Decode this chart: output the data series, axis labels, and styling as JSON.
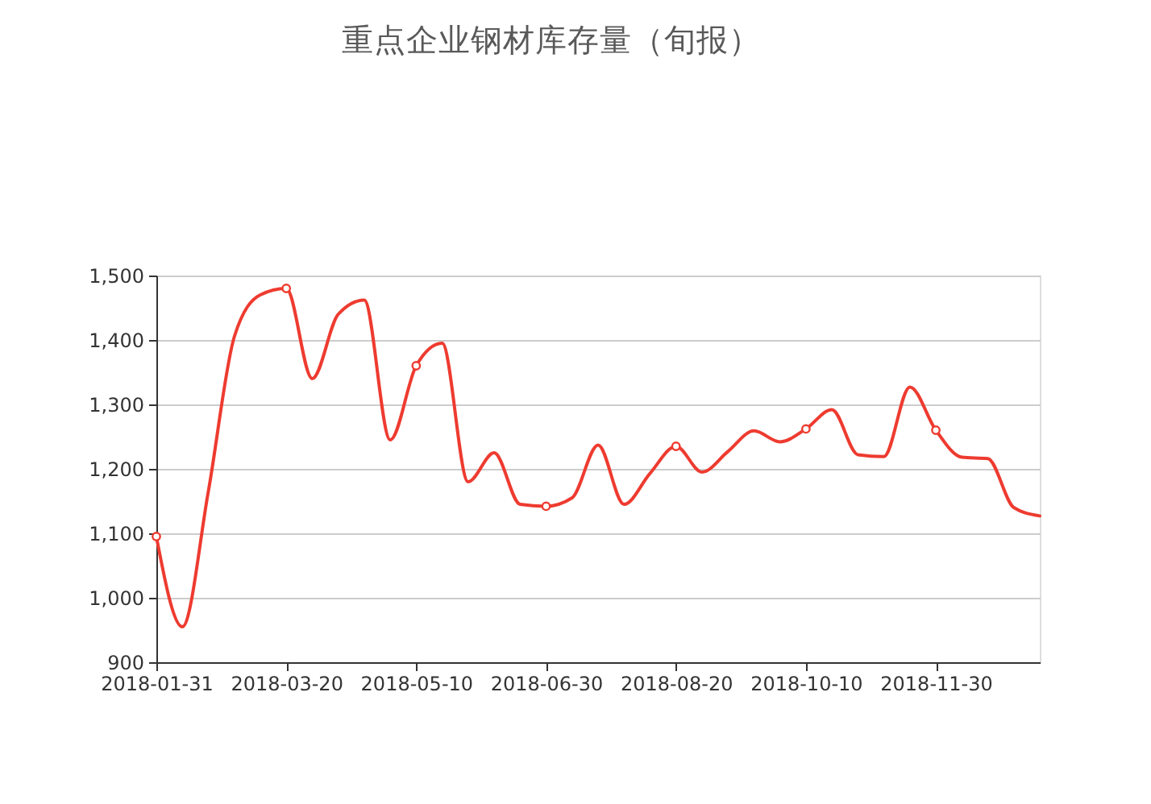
{
  "chart_data": {
    "type": "line",
    "title": "重点企业钢材库存量（旬报）",
    "categories": [
      "2018-01-31",
      null,
      null,
      null,
      null,
      "2018-03-20",
      null,
      null,
      null,
      null,
      "2018-05-10",
      null,
      null,
      null,
      null,
      "2018-06-30",
      null,
      null,
      null,
      null,
      "2018-08-20",
      null,
      null,
      null,
      null,
      "2018-10-10",
      null,
      null,
      null,
      null,
      "2018-11-30",
      null,
      null,
      null,
      null
    ],
    "series": [
      {
        "color": "#ee3b30",
        "values": [
          1095,
          955,
          1165,
          1405,
          1470,
          1480,
          1340,
          1440,
          1462,
          1245,
          1360,
          1395,
          1180,
          1225,
          1145,
          1142,
          1155,
          1237,
          1145,
          1193,
          1235,
          1195,
          1227,
          1259,
          1242,
          1262,
          1292,
          1222,
          1219,
          1327,
          1260,
          1218,
          1216,
          1140,
          1127
        ]
      },
      {
        "type": "scatter",
        "color": "#ee3b30",
        "marker": "circle",
        "values": [
          1095,
          null,
          null,
          null,
          null,
          1480,
          null,
          null,
          null,
          null,
          1360,
          null,
          null,
          null,
          null,
          1142,
          null,
          null,
          null,
          null,
          1235,
          null,
          null,
          null,
          null,
          1262,
          null,
          null,
          null,
          null,
          1260,
          null,
          null,
          null,
          null
        ]
      }
    ],
    "ylim": [
      900,
      1500
    ],
    "yticks": [
      900,
      {
        "value": 1000,
        "label": "1,000"
      },
      {
        "value": 1100,
        "label": "1,100"
      },
      {
        "value": 1200,
        "label": "1,200"
      },
      {
        "value": 1300,
        "label": "1,300"
      },
      {
        "value": 1400,
        "label": "1,400"
      },
      {
        "value": 1500,
        "label": "1,500"
      }
    ],
    "grid": "y",
    "line_style": "solid"
  }
}
